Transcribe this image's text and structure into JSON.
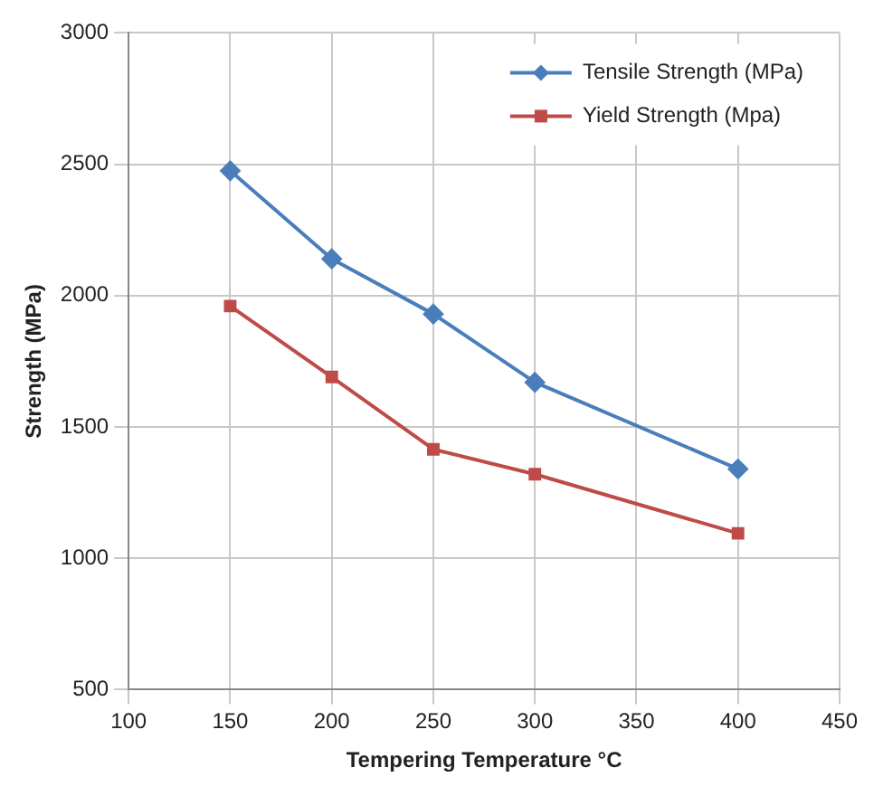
{
  "chart_data": {
    "type": "line",
    "xlabel": "Tempering Temperature °C",
    "ylabel": "Strength (MPa)",
    "x": [
      150,
      200,
      250,
      300,
      400
    ],
    "series": [
      {
        "name": "Tensile Strength (MPa)",
        "color": "#4a7ebb",
        "values": [
          2475,
          2140,
          1930,
          1670,
          1340
        ],
        "marker": "diamond"
      },
      {
        "name": "Yield Strength (Mpa)",
        "color": "#be4b48",
        "values": [
          1960,
          1690,
          1415,
          1320,
          1095
        ],
        "marker": "square"
      }
    ],
    "xlim": [
      100,
      450
    ],
    "xticks": [
      100,
      150,
      200,
      250,
      300,
      350,
      400,
      450
    ],
    "ylim": [
      500,
      3000
    ],
    "yticks": [
      500,
      1000,
      1500,
      2000,
      2500,
      3000
    ],
    "grid": true,
    "legend": "top right"
  }
}
